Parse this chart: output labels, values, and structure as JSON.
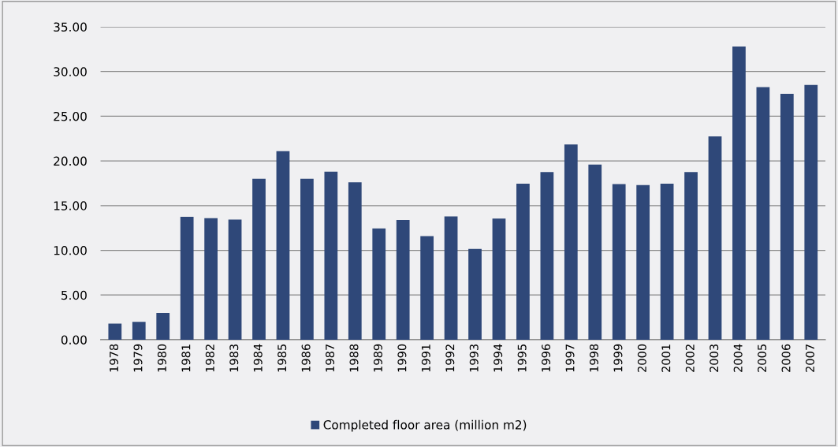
{
  "chart_data": {
    "type": "bar",
    "categories": [
      "1978",
      "1979",
      "1980",
      "1981",
      "1982",
      "1983",
      "1984",
      "1985",
      "1986",
      "1987",
      "1988",
      "1989",
      "1990",
      "1991",
      "1992",
      "1993",
      "1994",
      "1995",
      "1996",
      "1997",
      "1998",
      "1999",
      "2000",
      "2001",
      "2002",
      "2003",
      "2004",
      "2005",
      "2006",
      "2007"
    ],
    "series": [
      {
        "name": "Completed floor area (million m2)",
        "color": "#2f4879",
        "values": [
          1.8,
          2.0,
          3.0,
          13.75,
          13.6,
          13.45,
          18.0,
          21.1,
          18.0,
          18.8,
          17.6,
          12.45,
          13.4,
          11.6,
          13.8,
          10.15,
          13.55,
          17.45,
          18.75,
          21.85,
          19.6,
          17.4,
          17.3,
          17.45,
          18.75,
          22.75,
          32.8,
          28.25,
          27.5,
          28.5
        ]
      }
    ],
    "ylim": [
      0,
      35
    ],
    "yticks": [
      {
        "value": 0,
        "label": "0.00"
      },
      {
        "value": 5,
        "label": "5.00"
      },
      {
        "value": 10,
        "label": "10.00"
      },
      {
        "value": 15,
        "label": "15.00"
      },
      {
        "value": 20,
        "label": "20.00"
      },
      {
        "value": 25,
        "label": "25.00"
      },
      {
        "value": 30,
        "label": "30.00"
      },
      {
        "value": 35,
        "label": "35.00"
      }
    ],
    "grid": "y",
    "legend": "bottom"
  }
}
